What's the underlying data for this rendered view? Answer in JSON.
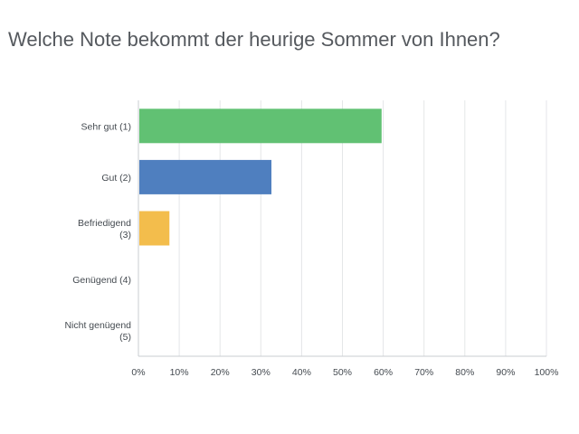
{
  "chart_data": {
    "type": "bar",
    "orientation": "horizontal",
    "title": "Welche Note bekommt der heurige Sommer von Ihnen?",
    "categories": [
      [
        "Sehr gut (1)"
      ],
      [
        "Gut (2)"
      ],
      [
        "Befriedigend",
        "(3)"
      ],
      [
        "Genügend (4)"
      ],
      [
        "Nicht genügend",
        "(5)"
      ]
    ],
    "values": [
      59.6,
      32.6,
      7.6,
      0,
      0
    ],
    "bar_colors": [
      "#61c173",
      "#4f7fbf",
      "#f3bd4c",
      "#f08b4f",
      "#b05c8f"
    ],
    "xlim": [
      0,
      100
    ],
    "x_ticks": [
      "0%",
      "10%",
      "20%",
      "30%",
      "40%",
      "50%",
      "60%",
      "70%",
      "80%",
      "90%",
      "100%"
    ],
    "xlabel": "",
    "ylabel": "",
    "grid": true
  }
}
